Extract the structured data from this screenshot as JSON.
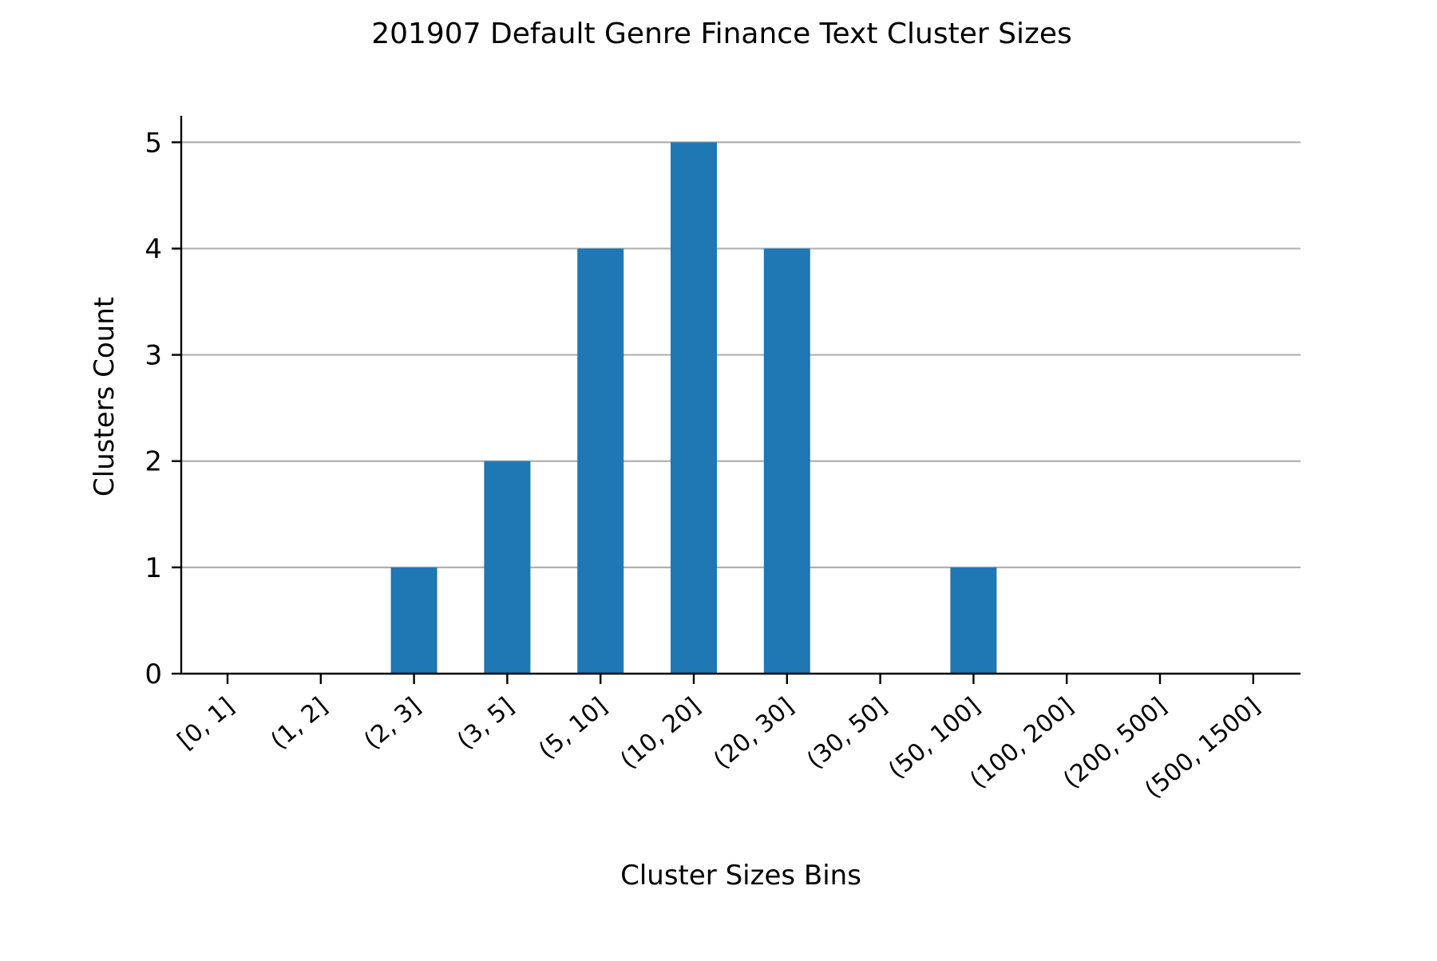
{
  "chart_data": {
    "type": "bar",
    "title": "201907 Default Genre Finance Text Cluster Sizes",
    "xlabel": "Cluster Sizes Bins",
    "ylabel": "Clusters Count",
    "categories": [
      "[0, 1]",
      "(1, 2]",
      "(2, 3]",
      "(3, 5]",
      "(5, 10]",
      "(10, 20]",
      "(20, 30]",
      "(30, 50]",
      "(50, 100]",
      "(100, 200]",
      "(200, 500]",
      "(500, 1500]"
    ],
    "values": [
      0,
      0,
      1,
      2,
      4,
      5,
      4,
      0,
      1,
      0,
      0,
      0
    ],
    "yticks": [
      0,
      1,
      2,
      3,
      4,
      5
    ],
    "ylim": [
      0,
      5.25
    ],
    "grid": "horizontal",
    "legend": "none",
    "colors": {
      "bar": "#1f77b4",
      "grid": "#b0b0b0",
      "axis": "#000000"
    }
  }
}
